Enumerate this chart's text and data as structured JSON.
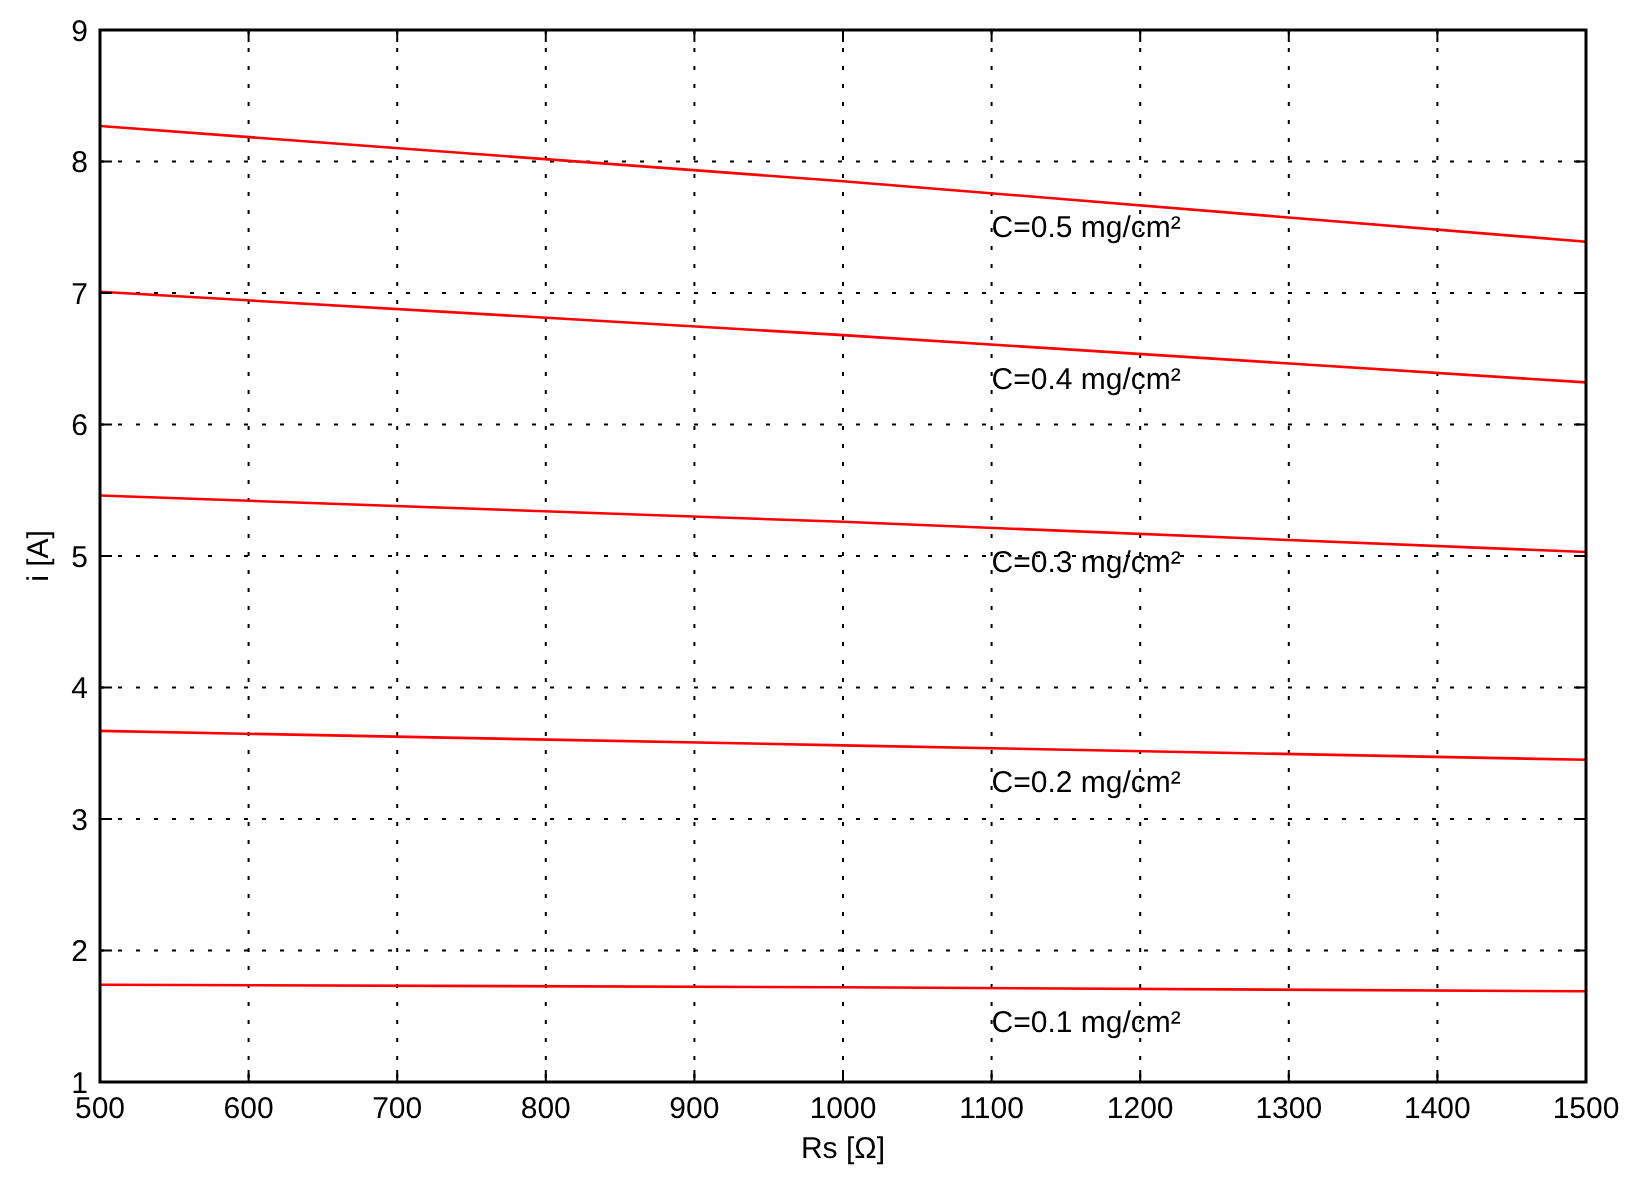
{
  "chart_data": {
    "type": "line",
    "xlabel": "Rs [Ω]",
    "ylabel": "i [A]",
    "x": [
      500,
      1000,
      1500
    ],
    "series": [
      {
        "name": "C=0.5 mg/cm²",
        "color": "#ff0000",
        "values": [
          8.27,
          7.85,
          7.39
        ]
      },
      {
        "name": "C=0.4 mg/cm²",
        "color": "#ff0000",
        "values": [
          7.01,
          6.68,
          6.32
        ]
      },
      {
        "name": "C=0.3 mg/cm²",
        "color": "#ff0000",
        "values": [
          5.46,
          5.26,
          5.03
        ]
      },
      {
        "name": "C=0.2 mg/cm²",
        "color": "#ff0000",
        "values": [
          3.67,
          3.56,
          3.45
        ]
      },
      {
        "name": "C=0.1 mg/cm²",
        "color": "#ff0000",
        "values": [
          1.74,
          1.72,
          1.69
        ]
      }
    ],
    "xlim": [
      500,
      1500
    ],
    "xticks": [
      500,
      600,
      700,
      800,
      900,
      1000,
      1100,
      1200,
      1300,
      1400,
      1500
    ],
    "ylim": [
      1,
      9
    ],
    "yticks": [
      1,
      2,
      3,
      4,
      5,
      6,
      7,
      8,
      9
    ],
    "grid": true,
    "marker": "none",
    "line_style": "solid"
  }
}
